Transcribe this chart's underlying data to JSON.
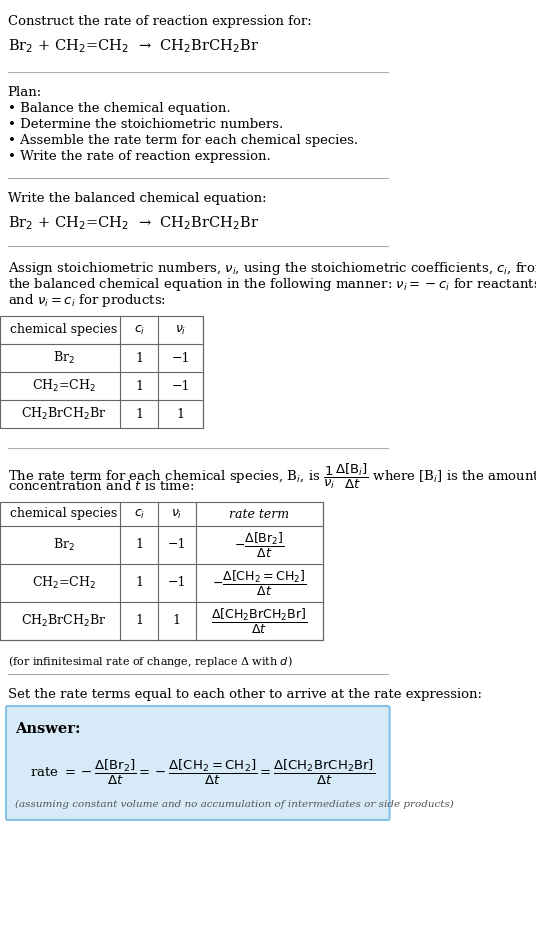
{
  "bg_color": "#ffffff",
  "title_line1": "Construct the rate of reaction expression for:",
  "reaction_equation": "Br$_2$ + CH$_2$=CH$_2$  →  CH$_2$BrCH$_2$Br",
  "plan_header": "Plan:",
  "plan_items": [
    "• Balance the chemical equation.",
    "• Determine the stoichiometric numbers.",
    "• Assemble the rate term for each chemical species.",
    "• Write the rate of reaction expression."
  ],
  "balanced_header": "Write the balanced chemical equation:",
  "balanced_eq": "Br$_2$ + CH$_2$=CH$_2$  →  CH$_2$BrCH$_2$Br",
  "stoich_intro": "Assign stoichiometric numbers, $\\nu_i$, using the stoichiometric coefficients, $c_i$, from\nthe balanced chemical equation in the following manner: $\\nu_i = -c_i$ for reactants\nand $\\nu_i = c_i$ for products:",
  "table1_headers": [
    "chemical species",
    "$c_i$",
    "$\\nu_i$"
  ],
  "table1_rows": [
    [
      "Br$_2$",
      "1",
      "−1"
    ],
    [
      "CH$_2$=CH$_2$",
      "1",
      "−1"
    ],
    [
      "CH$_2$BrCH$_2$Br",
      "1",
      "1"
    ]
  ],
  "rate_term_intro": "The rate term for each chemical species, B$_i$, is $\\dfrac{1}{\\nu_i}\\dfrac{\\Delta[\\mathrm{B}_i]}{\\Delta t}$ where [B$_i$] is the amount\nconcentration and $t$ is time:",
  "table2_headers": [
    "chemical species",
    "$c_i$",
    "$\\nu_i$",
    "rate term"
  ],
  "table2_rows": [
    [
      "Br$_2$",
      "1",
      "−1",
      "$-\\dfrac{\\Delta[\\mathrm{Br}_2]}{\\Delta t}$"
    ],
    [
      "CH$_2$=CH$_2$",
      "1",
      "−1",
      "$-\\dfrac{\\Delta[\\mathrm{CH_2{=}CH_2}]}{\\Delta t}$"
    ],
    [
      "CH$_2$BrCH$_2$Br",
      "1",
      "1",
      "$\\dfrac{\\Delta[\\mathrm{CH_2BrCH_2Br}]}{\\Delta t}$"
    ]
  ],
  "infinitesimal_note": "(for infinitesimal rate of change, replace Δ with $d$)",
  "set_equal_text": "Set the rate terms equal to each other to arrive at the rate expression:",
  "answer_label": "Answer:",
  "answer_eq": "rate $= -\\dfrac{\\Delta[\\mathrm{Br_2}]}{\\Delta t} = -\\dfrac{\\Delta[\\mathrm{CH_2{=}CH_2}]}{\\Delta t} = \\dfrac{\\Delta[\\mathrm{CH_2BrCH_2Br}]}{\\Delta t}$",
  "answer_note": "(assuming constant volume and no accumulation of intermediates or side products)",
  "answer_box_color": "#d6eaf8",
  "answer_box_border": "#85c1e9",
  "divider_color": "#999999",
  "text_color": "#000000",
  "font_size": 9.5,
  "small_font_size": 8.5
}
